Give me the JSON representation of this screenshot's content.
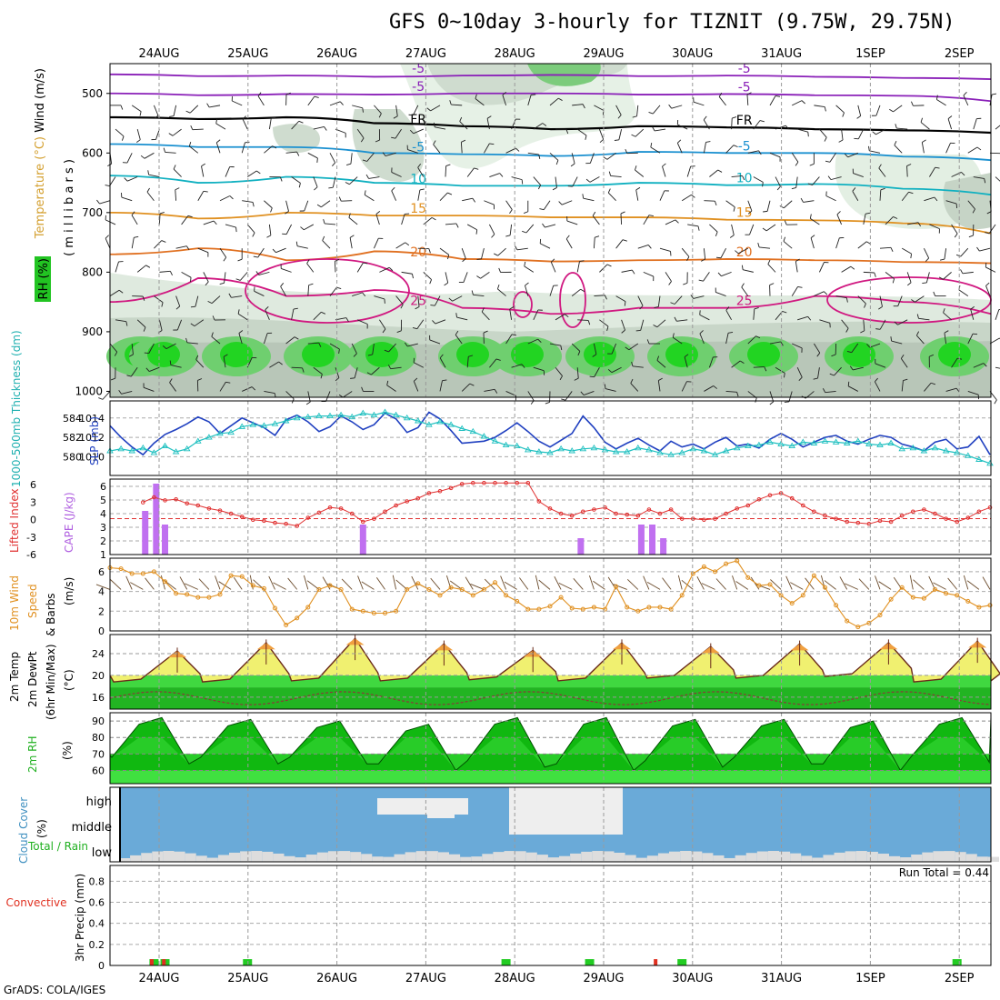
{
  "title": "GFS 0~10day 3-hourly for TIZNIT (9.75W, 29.75N)",
  "footer": "GrADS: COLA/IGES",
  "chart_data": {
    "x_tick_labels": [
      "24AUG",
      "25AUG",
      "26AUG",
      "27AUG",
      "28AUG",
      "29AUG",
      "30AUG",
      "31AUG",
      "1SEP",
      "2SEP"
    ],
    "panels": [
      {
        "id": "upper-air",
        "type": "heatmap",
        "ylabel_parts": [
          {
            "text": "Wind (m/s)",
            "color": "#000000"
          },
          {
            "text": "Temperature (°C)",
            "color": "#d4a030"
          },
          {
            "text": "RH (%)",
            "color": "#000000"
          },
          {
            "text": "( m i l l i b a r s )",
            "color": "#000000"
          }
        ],
        "ylim": [
          450,
          1010
        ],
        "yticks": [
          500,
          600,
          700,
          800,
          900,
          1000
        ],
        "contours": [
          {
            "label": "-5",
            "level_mb": [
              468,
              471,
              470,
              472,
              470,
              469,
              471,
              470,
              472,
              474,
              476
            ],
            "color": "#8a20b8"
          },
          {
            "label": "-5",
            "level_mb": [
              500,
              503,
              501,
              502,
              500,
              500,
              502,
              501,
              503,
              504,
              513
            ],
            "color": "#8a20b8"
          },
          {
            "label": "FR",
            "level_mb": [
              540,
              543,
              540,
              550,
              555,
              560,
              555,
              557,
              560,
              562,
              566
            ],
            "color": "#000000"
          },
          {
            "label": "-5",
            "level_mb": [
              585,
              590,
              590,
              600,
              602,
              605,
              598,
              600,
              600,
              606,
              612
            ],
            "color": "#1a90d0"
          },
          {
            "label": "10",
            "level_mb": [
              638,
              650,
              640,
              650,
              655,
              655,
              650,
              654,
              652,
              660,
              670
            ],
            "color": "#10b0c0"
          },
          {
            "label": "15",
            "level_mb": [
              700,
              710,
              700,
              705,
              705,
              708,
              708,
              712,
              713,
              718,
              735
            ],
            "color": "#e09020"
          },
          {
            "label": "20",
            "level_mb": [
              770,
              760,
              780,
              765,
              778,
              782,
              780,
              778,
              780,
              783,
              785
            ],
            "color": "#e07020"
          },
          {
            "label": "25",
            "level_mb": [
              850,
              810,
              840,
              830,
              860,
              870,
              860,
              860,
              840,
              850,
              870
            ],
            "color": "#d01880"
          }
        ]
      },
      {
        "id": "slp-thickness",
        "type": "line",
        "ylabel_left": "1000-500mb Thickness (dm)",
        "ylabel_right": "SLP (mb)",
        "yticks_left": [
          580,
          582,
          584
        ],
        "yticks_right": [
          1010,
          1012,
          1014
        ],
        "series": [
          {
            "name": "SLP (mb)",
            "color": "#2040c0",
            "values": [
              1013.2,
              1012.0,
              1011.0,
              1010.2,
              1011.4,
              1012.3,
              1012.8,
              1013.4,
              1014.1,
              1013.6,
              1012.4,
              1013.2,
              1014.0,
              1013.5,
              1013.0,
              1012.2,
              1013.8,
              1014.3,
              1013.6,
              1012.6,
              1013.1,
              1014.2,
              1013.6,
              1012.8,
              1013.3,
              1014.5,
              1013.9,
              1012.5,
              1013.0,
              1014.6,
              1013.9,
              1012.7,
              1011.4,
              1011.5,
              1011.6,
              1012.0,
              1012.7,
              1013.5,
              1012.6,
              1011.6,
              1011.0,
              1011.7,
              1012.4,
              1014.2,
              1013.0,
              1011.5,
              1010.8,
              1011.4,
              1011.9,
              1011.2,
              1010.6,
              1011.6,
              1011.0,
              1011.3,
              1010.8,
              1011.5,
              1012.0,
              1011.1,
              1011.3,
              1010.9,
              1011.8,
              1012.4,
              1011.8,
              1011.0,
              1011.5,
              1012.0,
              1012.2,
              1011.6,
              1011.3,
              1011.8,
              1012.2,
              1012.0,
              1011.3,
              1011.0,
              1010.6,
              1011.5,
              1011.8,
              1010.8,
              1011.0,
              1012.1,
              1010.2
            ]
          },
          {
            "name": "1000-500mb Thickness (dm)",
            "color": "#20c0c0",
            "values": [
              580.6,
              580.8,
              580.6,
              580.9,
              580.4,
              581.1,
              580.5,
              580.8,
              581.6,
              582.0,
              582.4,
              582.5,
              583.1,
              583.3,
              583.2,
              583.4,
              583.7,
              584.0,
              584.1,
              584.2,
              584.2,
              584.3,
              584.1,
              584.5,
              584.3,
              584.6,
              584.3,
              584.0,
              583.7,
              583.3,
              583.6,
              583.3,
              582.9,
              582.6,
              582.1,
              581.6,
              581.2,
              581.1,
              580.7,
              580.5,
              580.4,
              580.8,
              580.6,
              580.8,
              580.9,
              580.7,
              580.5,
              580.5,
              580.9,
              580.7,
              580.4,
              580.2,
              580.4,
              580.8,
              580.6,
              580.2,
              580.6,
              580.9,
              581.1,
              581.2,
              581.5,
              581.3,
              581.1,
              581.5,
              581.4,
              581.6,
              581.5,
              581.4,
              581.6,
              581.3,
              581.2,
              581.4,
              580.8,
              580.9,
              580.6,
              580.9,
              580.6,
              580.4,
              580.1,
              579.7,
              579.3
            ]
          }
        ]
      },
      {
        "id": "cape-li",
        "type": "bar",
        "ylabel_left": "Lifted Index",
        "ylabel_right": "CAPE (J/kg)",
        "yticks_left": [
          "6",
          "3",
          "0",
          "-3",
          "-6"
        ],
        "yticks_right": [
          1,
          2,
          3,
          4,
          5,
          6
        ],
        "cape_bars": [
          {
            "x": 3.2,
            "value": 4.2
          },
          {
            "x": 4.2,
            "value": 6.2
          },
          {
            "x": 5.0,
            "value": 3.2
          },
          {
            "x": 23.0,
            "value": 3.2
          },
          {
            "x": 42.8,
            "value": 2.2
          },
          {
            "x": 48.3,
            "value": 3.2
          },
          {
            "x": 49.3,
            "value": 3.2
          },
          {
            "x": 50.3,
            "value": 2.2
          }
        ],
        "lifted_index": [
          null,
          null,
          null,
          5.1,
          5.6,
          5.3,
          5.4,
          5.0,
          4.8,
          4.5,
          4.3,
          4.0,
          3.7,
          3.4,
          3.3,
          3.1,
          3.0,
          2.8,
          3.6,
          4.1,
          4.6,
          4.5,
          4.0,
          3.2,
          3.5,
          4.2,
          4.8,
          5.2,
          5.5,
          6.0,
          6.2,
          6.5,
          6.9,
          7.0,
          7.0,
          7.0,
          7.0,
          7.0,
          7.0,
          5.2,
          4.5,
          4.0,
          3.8,
          4.2,
          4.4,
          4.6,
          4.0,
          3.9,
          3.8,
          4.4,
          4.0,
          4.4,
          3.5,
          3.5,
          3.4,
          3.5,
          4.0,
          4.5,
          4.8,
          5.4,
          5.8,
          6.0,
          5.5,
          4.8,
          4.2,
          3.8,
          3.5,
          3.2,
          3.1,
          3.0,
          3.3,
          3.2,
          3.8,
          4.2,
          4.4,
          4.0,
          3.5,
          3.2,
          3.6,
          4.2,
          4.6
        ]
      },
      {
        "id": "wind10m",
        "type": "line",
        "ylabel": "10m Wind Speed (m/s) & Barbs",
        "yticks": [
          0,
          2,
          4,
          6
        ],
        "ylim": [
          0,
          7
        ],
        "series": [
          {
            "name": "10m Wind Speed (m/s)",
            "color": "#e09020",
            "values": [
              6.4,
              6.3,
              5.8,
              5.8,
              6.0,
              5.0,
              3.8,
              3.7,
              3.4,
              3.4,
              3.7,
              5.6,
              5.5,
              4.6,
              4.3,
              2.3,
              0.6,
              1.3,
              2.4,
              4.2,
              4.6,
              4.2,
              2.2,
              2.0,
              1.8,
              1.8,
              2.0,
              4.2,
              4.8,
              4.2,
              3.6,
              4.4,
              4.2,
              3.6,
              4.2,
              4.9,
              3.6,
              3.0,
              2.2,
              2.2,
              2.5,
              3.4,
              2.3,
              2.2,
              2.4,
              2.2,
              4.5,
              2.4,
              2.0,
              2.4,
              2.4,
              2.2,
              3.6,
              5.8,
              6.5,
              6.0,
              6.8,
              7.1,
              5.4,
              4.6,
              4.7,
              3.6,
              2.8,
              3.6,
              5.6,
              4.4,
              2.6,
              1.0,
              0.4,
              0.8,
              1.6,
              3.2,
              4.4,
              3.4,
              3.3,
              4.2,
              3.8,
              3.6,
              3.0,
              2.4,
              2.6
            ]
          }
        ]
      },
      {
        "id": "temperature",
        "type": "area",
        "ylabel": "2m Temp 2m DewPt (6hr Min/Max) (°C)",
        "yticks": [
          16,
          20,
          24
        ],
        "ylim": [
          13.8,
          27.5
        ],
        "daily_min": [
          18.8,
          18.8,
          19.0,
          19.0,
          19.2,
          19.0,
          19.5,
          19.5,
          19.8,
          18.8
        ],
        "daily_max": [
          24.5,
          26.0,
          26.8,
          25.8,
          24.6,
          26.0,
          25.3,
          25.8,
          26.0,
          26.3
        ],
        "dewpoint_range": [
          14.8,
          17.8
        ]
      },
      {
        "id": "rh",
        "type": "area",
        "ylabel": "2m RH (%)",
        "yticks": [
          60,
          70,
          80,
          90
        ],
        "ylim": [
          52,
          95
        ],
        "daily_max": [
          92,
          91,
          90,
          88,
          92,
          92,
          91,
          91,
          90,
          92
        ],
        "daily_min": [
          62,
          62,
          62,
          58,
          60,
          58,
          60,
          62,
          58,
          63
        ]
      },
      {
        "id": "cloud-cover",
        "type": "area",
        "ylabel": "Cloud Cover (%)",
        "level_labels": [
          "high",
          "middle",
          "low"
        ]
      },
      {
        "id": "precip",
        "type": "bar",
        "ylabel_left": "Total / Rain Convective",
        "ylabel": "3hr Precip (mm)",
        "yticks": [
          "0",
          "0.2",
          "0.4",
          "0.6",
          "0.8"
        ],
        "ylim": [
          0,
          0.95
        ],
        "run_total_label": "Run Total = 0.44",
        "total_bars": [
          {
            "x": 4.0,
            "value": 0.06
          },
          {
            "x": 5.0,
            "value": 0.06
          },
          {
            "x": 12.5,
            "value": 0.06
          },
          {
            "x": 36.0,
            "value": 0.06
          },
          {
            "x": 43.6,
            "value": 0.06
          },
          {
            "x": 52.0,
            "value": 0.06
          },
          {
            "x": 77.0,
            "value": 0.06
          }
        ],
        "convective_bars": [
          {
            "x": 3.8,
            "value": 0.06
          },
          {
            "x": 4.9,
            "value": 0.06
          },
          {
            "x": 49.6,
            "value": 0.06
          }
        ]
      }
    ]
  }
}
